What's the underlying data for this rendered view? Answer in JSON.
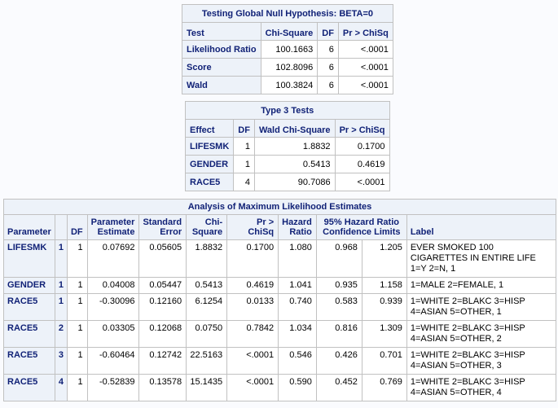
{
  "global_null": {
    "title": "Testing Global Null Hypothesis: BETA=0",
    "headers": [
      "Test",
      "Chi-Square",
      "DF",
      "Pr > ChiSq"
    ],
    "rows": [
      [
        "Likelihood Ratio",
        "100.1663",
        "6",
        "<.0001"
      ],
      [
        "Score",
        "102.8096",
        "6",
        "<.0001"
      ],
      [
        "Wald",
        "100.3824",
        "6",
        "<.0001"
      ]
    ]
  },
  "type3": {
    "title": "Type 3 Tests",
    "headers": [
      "Effect",
      "DF",
      "Wald Chi-Square",
      "Pr > ChiSq"
    ],
    "rows": [
      [
        "LIFESMK",
        "1",
        "1.8832",
        "0.1700"
      ],
      [
        "GENDER",
        "1",
        "0.5413",
        "0.4619"
      ],
      [
        "RACE5",
        "4",
        "90.7086",
        "<.0001"
      ]
    ]
  },
  "mle": {
    "title": "Analysis of Maximum Likelihood Estimates",
    "headers": {
      "parameter": "Parameter",
      "df": "DF",
      "estimate": "Parameter Estimate",
      "stderr": "Standard Error",
      "chisq": "Chi-Square",
      "p": "Pr > ChiSq",
      "hr": "Hazard Ratio",
      "ci": "95% Hazard Ratio Confidence Limits",
      "label": "Label"
    },
    "rows": [
      [
        "LIFESMK",
        "1",
        "1",
        "0.07692",
        "0.05605",
        "1.8832",
        "0.1700",
        "1.080",
        "0.968",
        "1.205",
        "EVER SMOKED 100 CIGARETTES IN ENTIRE LIFE 1=Y 2=N, 1"
      ],
      [
        "GENDER",
        "1",
        "1",
        "0.04008",
        "0.05447",
        "0.5413",
        "0.4619",
        "1.041",
        "0.935",
        "1.158",
        "1=MALE 2=FEMALE, 1"
      ],
      [
        "RACE5",
        "1",
        "1",
        "-0.30096",
        "0.12160",
        "6.1254",
        "0.0133",
        "0.740",
        "0.583",
        "0.939",
        "1=WHITE 2=BLAKC 3=HISP 4=ASIAN 5=OTHER, 1"
      ],
      [
        "RACE5",
        "2",
        "1",
        "0.03305",
        "0.12068",
        "0.0750",
        "0.7842",
        "1.034",
        "0.816",
        "1.309",
        "1=WHITE 2=BLAKC 3=HISP 4=ASIAN 5=OTHER, 2"
      ],
      [
        "RACE5",
        "3",
        "1",
        "-0.60464",
        "0.12742",
        "22.5163",
        "<.0001",
        "0.546",
        "0.426",
        "0.701",
        "1=WHITE 2=BLAKC 3=HISP 4=ASIAN 5=OTHER, 3"
      ],
      [
        "RACE5",
        "4",
        "1",
        "-0.52839",
        "0.13578",
        "15.1435",
        "<.0001",
        "0.590",
        "0.452",
        "0.769",
        "1=WHITE 2=BLAKC 3=HISP 4=ASIAN 5=OTHER, 4"
      ]
    ]
  }
}
